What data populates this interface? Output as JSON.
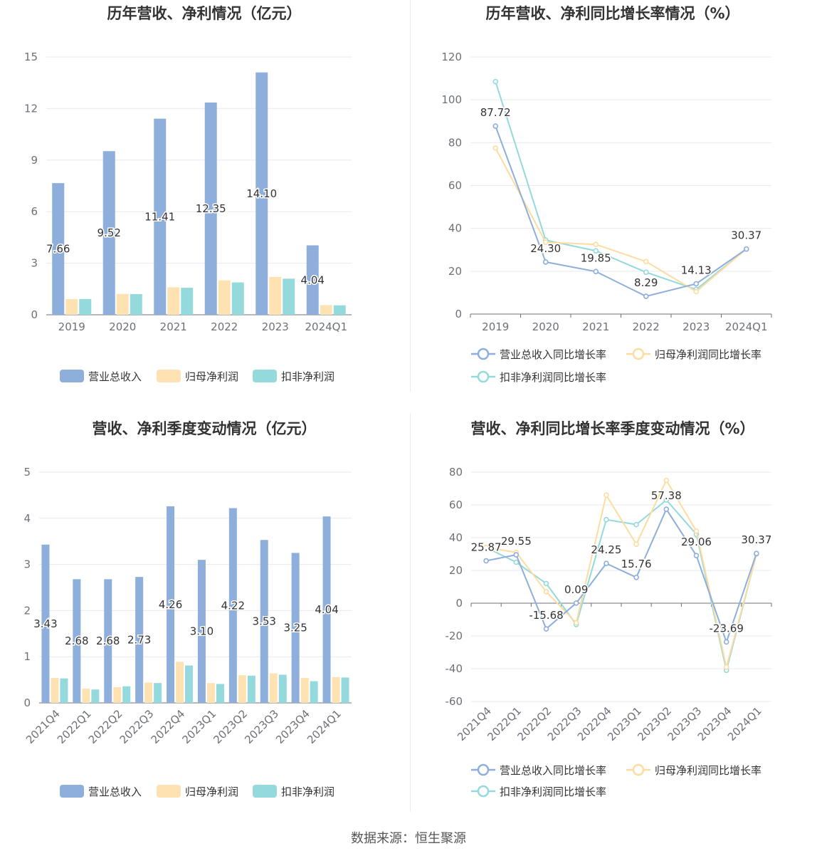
{
  "colors": {
    "revenue": "#8eaedb",
    "net": "#fee2b1",
    "deducted": "#94d9dc",
    "line_revenue": "#8eaedb",
    "line_net": "#fddc9f",
    "line_deducted": "#94d9dc"
  },
  "source": "数据来源：恒生聚源",
  "chart_data": [
    {
      "id": "p1",
      "type": "bar",
      "title": "历年营收、净利情况（亿元）",
      "categories": [
        "2019",
        "2020",
        "2021",
        "2022",
        "2023",
        "2024Q1"
      ],
      "ylim": [
        0,
        15
      ],
      "yticks": [
        0,
        3,
        6,
        9,
        12,
        15
      ],
      "series": [
        {
          "name": "营业总收入",
          "values": [
            7.66,
            9.52,
            11.41,
            12.35,
            14.1,
            4.04
          ],
          "labels": [
            "7.66",
            "9.52",
            "11.41",
            "12.35",
            "14.10",
            "4.04"
          ]
        },
        {
          "name": "归母净利润",
          "values": [
            0.91,
            1.21,
            1.6,
            2.0,
            2.2,
            0.56
          ]
        },
        {
          "name": "扣非净利润",
          "values": [
            0.92,
            1.2,
            1.57,
            1.88,
            2.1,
            0.55
          ]
        }
      ],
      "legend": "bottom"
    },
    {
      "id": "p2",
      "type": "line",
      "title": "历年营收、净利同比增长率情况（%）",
      "categories": [
        "2019",
        "2020",
        "2021",
        "2022",
        "2023",
        "2024Q1"
      ],
      "ylim": [
        0,
        120
      ],
      "yticks": [
        0,
        20,
        40,
        60,
        80,
        100,
        120
      ],
      "series": [
        {
          "name": "营业总收入同比增长率",
          "values": [
            87.72,
            24.3,
            19.85,
            8.29,
            14.13,
            30.37
          ],
          "labels": [
            "87.72",
            "24.30",
            "19.85",
            "8.29",
            "14.13",
            "30.37"
          ]
        },
        {
          "name": "归母净利润同比增长率",
          "values": [
            77.5,
            33.5,
            32.5,
            24.5,
            10.5,
            30.4
          ]
        },
        {
          "name": "扣非净利润同比增长率",
          "values": [
            108.5,
            34.5,
            29.5,
            19.5,
            11.5,
            30.3
          ]
        }
      ],
      "legend": "bottom"
    },
    {
      "id": "p3",
      "type": "bar",
      "title": "营收、净利季度变动情况（亿元）",
      "categories": [
        "2021Q4",
        "2022Q1",
        "2022Q2",
        "2022Q3",
        "2022Q4",
        "2023Q1",
        "2023Q2",
        "2023Q3",
        "2023Q4",
        "2024Q1"
      ],
      "ylim": [
        0,
        5
      ],
      "yticks": [
        0,
        1,
        2,
        3,
        4,
        5
      ],
      "series": [
        {
          "name": "营业总收入",
          "values": [
            3.43,
            2.68,
            2.68,
            2.73,
            4.26,
            3.1,
            4.22,
            3.53,
            3.25,
            4.04
          ],
          "labels": [
            "3.43",
            "2.68",
            "2.68",
            "2.73",
            "4.26",
            "3.10",
            "4.22",
            "3.53",
            "3.25",
            "4.04"
          ]
        },
        {
          "name": "归母净利润",
          "values": [
            0.54,
            0.31,
            0.34,
            0.44,
            0.89,
            0.43,
            0.6,
            0.64,
            0.54,
            0.56
          ]
        },
        {
          "name": "扣非净利润",
          "values": [
            0.53,
            0.29,
            0.36,
            0.43,
            0.81,
            0.41,
            0.59,
            0.61,
            0.47,
            0.55
          ]
        }
      ],
      "legend": "bottom"
    },
    {
      "id": "p4",
      "type": "line",
      "title": "营收、净利同比增长率季度变动情况（%）",
      "categories": [
        "2021Q4",
        "2022Q1",
        "2022Q2",
        "2022Q3",
        "2022Q4",
        "2023Q1",
        "2023Q2",
        "2023Q3",
        "2023Q4",
        "2024Q1"
      ],
      "ylim": [
        -60,
        80
      ],
      "yticks": [
        -60,
        -40,
        -20,
        0,
        20,
        40,
        60,
        80
      ],
      "series": [
        {
          "name": "营业总收入同比增长率",
          "values": [
            25.87,
            29.55,
            -15.68,
            0.09,
            24.25,
            15.76,
            57.38,
            29.06,
            -23.69,
            30.37
          ],
          "labels": [
            "25.87",
            "29.55",
            "-15.68",
            "0.09",
            "24.25",
            "15.76",
            "57.38",
            "29.06",
            "-23.69",
            "30.37"
          ]
        },
        {
          "name": "归母净利润同比增长率",
          "values": [
            34,
            31,
            7,
            -12,
            66,
            36,
            75,
            44,
            -39,
            30
          ]
        },
        {
          "name": "扣非净利润同比增长率",
          "values": [
            34,
            25,
            12,
            -13,
            51,
            48,
            63,
            42,
            -41,
            30
          ]
        }
      ],
      "legend": "bottom"
    }
  ]
}
